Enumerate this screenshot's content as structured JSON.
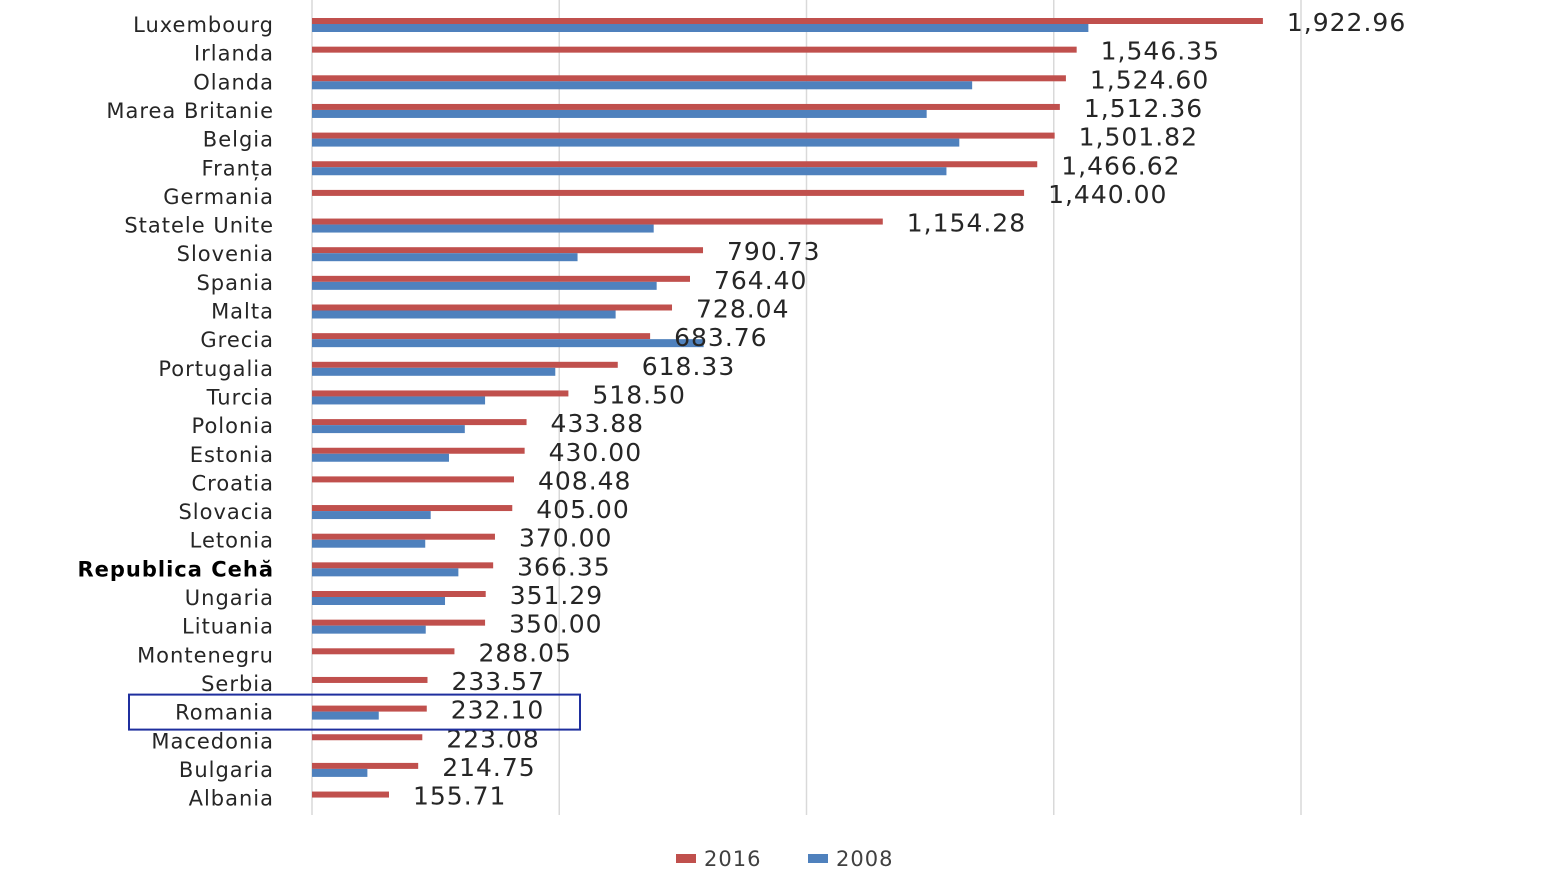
{
  "chart_data": {
    "type": "bar",
    "orientation": "horizontal",
    "categories": [
      "Luxembourg",
      "Irlanda",
      "Olanda",
      "Marea Britanie",
      "Belgia",
      "Franța",
      "Germania",
      "Statele Unite",
      "Slovenia",
      "Spania",
      "Malta",
      "Grecia",
      "Portugalia",
      "Turcia",
      "Polonia",
      "Estonia",
      "Croatia",
      "Slovacia",
      "Letonia",
      "Republica Cehă",
      "Ungaria",
      "Lituania",
      "Montenegru",
      "Serbia",
      "Romania",
      "Macedonia",
      "Bulgaria",
      "Albania"
    ],
    "series": [
      {
        "name": "2016",
        "color": "#c0504d",
        "values": [
          1922.96,
          1546.35,
          1524.6,
          1512.36,
          1501.82,
          1466.62,
          1440.0,
          1154.28,
          790.73,
          764.4,
          728.04,
          683.76,
          618.33,
          518.5,
          433.88,
          430.0,
          408.48,
          405.0,
          370.0,
          366.35,
          351.29,
          350.0,
          288.05,
          233.57,
          232.1,
          223.08,
          214.75,
          155.71
        ]
      },
      {
        "name": "2008",
        "color": "#4f81bd",
        "values": [
          1570,
          null,
          1335,
          1243,
          1309,
          1283,
          null,
          691,
          537,
          697,
          614,
          792,
          492,
          350,
          309,
          277,
          null,
          240,
          229,
          296,
          269,
          230,
          null,
          null,
          135,
          null,
          112,
          null
        ]
      }
    ],
    "value_labels": [
      "1,922.96",
      "1,546.35",
      "1,524.60",
      "1,512.36",
      "1,501.82",
      "1,466.62",
      "1,440.00",
      "1,154.28",
      "790.73",
      "764.40",
      "728.04",
      "683.76",
      "618.33",
      "518.50",
      "433.88",
      "430.00",
      "408.48",
      "405.00",
      "370.00",
      "366.35",
      "351.29",
      "350.00",
      "288.05",
      "233.57",
      "232.10",
      "223.08",
      "214.75",
      "155.71"
    ],
    "xlim": [
      0,
      2000
    ],
    "grid": true,
    "legend": "bottom",
    "highlight": "Romania",
    "highlight_color": "#1f2f9e"
  }
}
